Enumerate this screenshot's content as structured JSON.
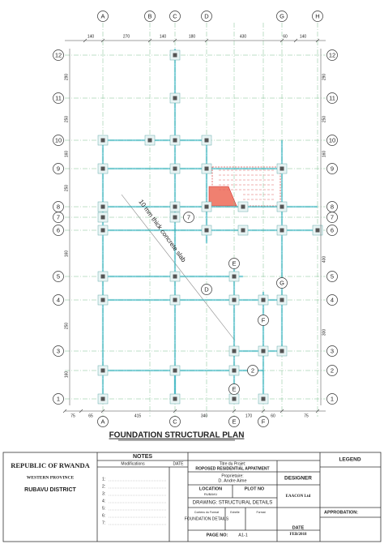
{
  "grid": {
    "columns_top": [
      "A",
      "B",
      "C",
      "D",
      "G",
      "H"
    ],
    "columns_bottom": [
      "A",
      "C",
      "E",
      "F"
    ],
    "rows_left": [
      "12",
      "11",
      "10",
      "9",
      "8",
      "7",
      "6",
      "5",
      "4",
      "3",
      "1"
    ],
    "rows_right": [
      "12",
      "11",
      "10",
      "9",
      "8",
      "7",
      "6",
      "5",
      "4",
      "3",
      "2",
      "1"
    ]
  },
  "dimensions": {
    "top": [
      "140",
      "270",
      "140",
      "180",
      "430",
      "60",
      "140"
    ],
    "bottom": [
      "75",
      "65",
      "415",
      "340",
      "170",
      "60",
      "75"
    ],
    "left": [
      "290",
      "250",
      "160",
      "250",
      "160",
      "250",
      "160"
    ],
    "right": [
      "290",
      "250",
      "160",
      "400",
      "300"
    ]
  },
  "plan": {
    "title": "FOUNDATION STRUCTURAL PLAN",
    "slab_note": "10 mm thick concrete slab",
    "inner_labels": [
      "7",
      "E",
      "D",
      "F",
      "G",
      "E",
      "2"
    ]
  },
  "title_block": {
    "country": "REPUBLIC OF RWANDA",
    "province": "WESTERN PROVINCE",
    "district": "RUBAVU DISTRICT",
    "notes": "NOTES",
    "modifications": "Modifications",
    "date_header": "DATE",
    "note_rows": [
      "1:",
      "2:",
      "3:",
      "4:",
      "5:",
      "6:",
      "7:"
    ],
    "project_label": "Titre du Projet:",
    "project": "ROPOSED RESIDENTIAL APPATMENT",
    "owner_label": "Proprietaire:",
    "owner": "D. Andre Aime",
    "designer": "DESIGNER",
    "location_label": "LOCATION",
    "location": "RUBAVU",
    "plot_label": "PLOT NO",
    "drawing": "DRAWING: STRUCTURAL DETAILS",
    "company": "EAACON Ltd",
    "content_label": "Contenu du Format",
    "content": "FOUNDATION DETAILS",
    "scale_label": "Echelle",
    "format_label": "Format",
    "page_label": "PAGE NO:",
    "page": "A1-1",
    "date_label": "DATE",
    "date": "FEB/2018",
    "legend": "LEGEND",
    "approbation": "APPROBATION:"
  }
}
